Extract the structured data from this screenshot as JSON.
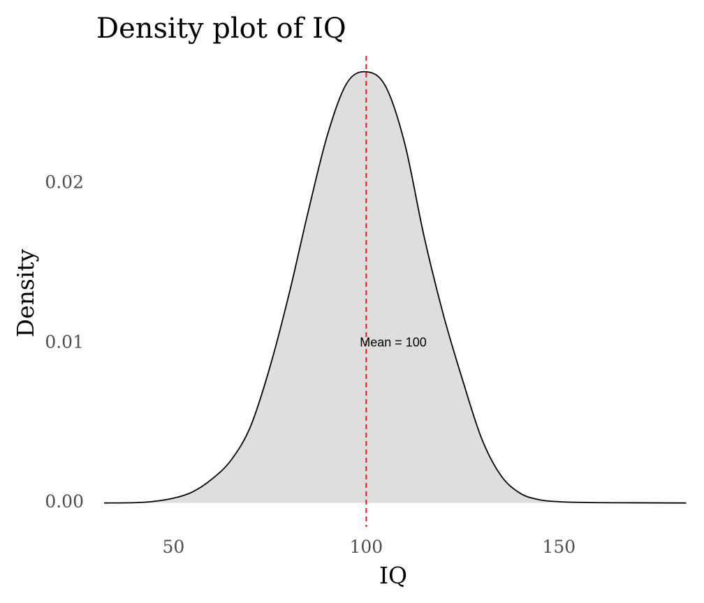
{
  "chart_data": {
    "type": "area",
    "title": "Density plot of IQ",
    "xlabel": "IQ",
    "ylabel": "Density",
    "xlim": [
      30,
      184
    ],
    "ylim": [
      -0.0015,
      0.028
    ],
    "x_ticks": [
      50,
      100,
      150
    ],
    "x_tick_labels": [
      "50",
      "100",
      "150"
    ],
    "y_ticks": [
      0.0,
      0.01,
      0.02
    ],
    "y_tick_labels": [
      "0.00",
      "0.01",
      "0.02"
    ],
    "grid": false,
    "legend": "none",
    "series": [
      {
        "x": [
          32,
          40,
          45,
          50,
          55,
          60,
          65,
          70,
          75,
          80,
          85,
          90,
          95,
          100,
          105,
          110,
          115,
          120,
          125,
          130,
          135,
          140,
          145,
          150,
          155,
          160,
          170,
          183
        ],
        "y": [
          0.0,
          2e-05,
          0.0001,
          0.0003,
          0.0007,
          0.0015,
          0.0027,
          0.0048,
          0.0085,
          0.0131,
          0.0183,
          0.0231,
          0.0263,
          0.027,
          0.0261,
          0.0225,
          0.0167,
          0.0118,
          0.0077,
          0.004,
          0.0017,
          0.0006,
          0.0002,
          8e-05,
          4e-05,
          2e-05,
          1e-05,
          0.0
        ]
      }
    ],
    "annotations": [
      {
        "type": "vline",
        "x": 100,
        "style": "dashed"
      },
      {
        "type": "text",
        "x": 107,
        "y": 0.01,
        "text": "Mean = 100"
      }
    ],
    "colors": {
      "fill": "#dedede",
      "line": "#000000",
      "mean_line": "#e41a1c",
      "tick_text": "#4d4d4d"
    }
  }
}
